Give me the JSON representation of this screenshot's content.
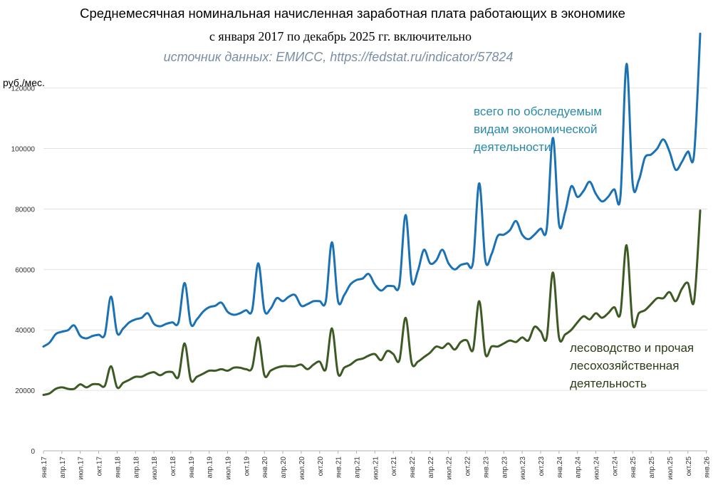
{
  "header": {
    "title": "Среднемесячная номинальная начисленная заработная плата работающих в экономике",
    "subtitle": "с января 2017 по декабрь 2025 гг. включительно",
    "source": "источник данных: ЕМИСС, https://fedstat.ru/indicator/57824"
  },
  "chart_data": {
    "type": "line",
    "ylabel": "руб./мес.",
    "ylim": [
      0,
      135000
    ],
    "yticks": [
      0,
      20000,
      40000,
      60000,
      80000,
      100000,
      120000
    ],
    "grid": "horizontal",
    "x_tick_labels": [
      "янв.17",
      "апр.17",
      "июл.17",
      "окт.17",
      "янв.18",
      "апр.18",
      "июл.18",
      "окт.18",
      "янв.19",
      "апр.19",
      "июл.19",
      "окт.19",
      "янв.20",
      "апр.20",
      "июл.20",
      "окт.20",
      "янв.21",
      "апр.21",
      "июл.21",
      "окт.21",
      "янв.22",
      "апр.22",
      "июл.22",
      "окт.22",
      "янв.23",
      "апр.23",
      "июл.23",
      "окт.23",
      "янв.24",
      "апр.24",
      "июл.24",
      "окт.24",
      "янв.25",
      "апр.25",
      "июл.25",
      "окт.25",
      "янв.26"
    ],
    "series": [
      {
        "name": "всего по обследуемым видам экономической деятельности",
        "color": "#1a72b5",
        "label_color": "#2a8aa8",
        "values": [
          34500,
          35800,
          38600,
          39400,
          39900,
          41500,
          38000,
          37200,
          38000,
          38400,
          38500,
          51000,
          39000,
          40500,
          42500,
          43500,
          44000,
          45500,
          42000,
          41200,
          42000,
          42500,
          42500,
          55500,
          42000,
          43500,
          46000,
          47500,
          48000,
          49000,
          46000,
          45000,
          45500,
          46500,
          46500,
          62000,
          46500,
          47000,
          50500,
          49500,
          51000,
          51500,
          48000,
          48500,
          49500,
          49500,
          49500,
          69000,
          49500,
          51500,
          55000,
          56500,
          57000,
          58500,
          55000,
          53000,
          54500,
          54500,
          55000,
          78000,
          56000,
          59500,
          66500,
          62000,
          63000,
          66500,
          62000,
          60000,
          61500,
          62000,
          62500,
          88500,
          63000,
          65000,
          71000,
          71500,
          73000,
          76000,
          71500,
          70000,
          71500,
          73500,
          73500,
          103500,
          75000,
          79000,
          87500,
          84000,
          86000,
          89000,
          85000,
          82500,
          84000,
          86500,
          84000,
          128000,
          88500,
          89500,
          97000,
          98000,
          100000,
          103000,
          99000,
          93000,
          95500,
          99000,
          98000,
          138000
        ]
      },
      {
        "name": "лесоводство и прочая лесохозяйственная деятельность",
        "color": "#3d5a24",
        "label_color": "#2a3d18",
        "values": [
          18500,
          19000,
          20500,
          21000,
          20500,
          20500,
          22000,
          21000,
          22000,
          22000,
          21500,
          28000,
          21000,
          22500,
          23500,
          24500,
          24500,
          25500,
          26000,
          25000,
          26000,
          26000,
          24500,
          35500,
          23500,
          24500,
          25500,
          26500,
          26500,
          27000,
          26500,
          27500,
          27500,
          27000,
          27500,
          37500,
          25000,
          26500,
          27500,
          28000,
          28000,
          28000,
          28500,
          27000,
          28500,
          29500,
          27000,
          40500,
          25500,
          27500,
          28500,
          30000,
          30500,
          31500,
          32000,
          30000,
          33000,
          32000,
          30000,
          44000,
          29000,
          29500,
          31000,
          32500,
          34500,
          34000,
          35500,
          33500,
          36000,
          36500,
          33500,
          49500,
          32000,
          34500,
          34500,
          35500,
          36500,
          36000,
          37500,
          36500,
          41000,
          39500,
          37500,
          59000,
          37500,
          38500,
          40000,
          42500,
          44500,
          43500,
          45500,
          44000,
          45500,
          47500,
          45500,
          68000,
          42000,
          45500,
          46500,
          48500,
          50500,
          50500,
          52500,
          49500,
          53500,
          55500,
          49500,
          79500
        ]
      }
    ]
  }
}
